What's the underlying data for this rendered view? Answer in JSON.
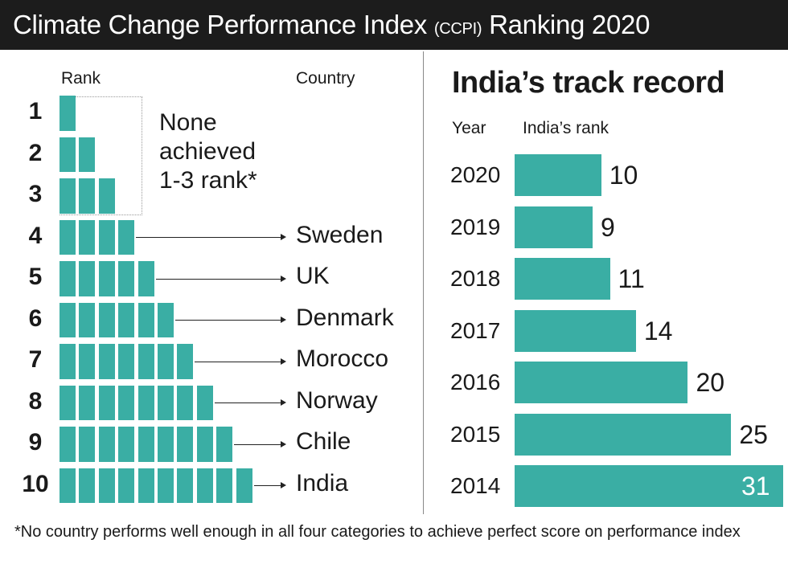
{
  "title": {
    "main": "Climate Change Performance Index",
    "abbr": "(CCPI)",
    "tail": "Ranking 2020"
  },
  "left": {
    "rank_header": "Rank",
    "country_header": "Country",
    "none_note": [
      "None",
      "achieved",
      "1-3 rank*"
    ]
  },
  "right": {
    "title": "India’s track record",
    "year_header": "Year",
    "rank_header": "India’s rank"
  },
  "footnote": "*No country performs well enough in all four categories to achieve perfect score on performance index",
  "colors": {
    "bar": "#3aaea4",
    "title_bg": "#1c1c1c"
  },
  "chart_data": [
    {
      "type": "bar",
      "title": "Climate Change Performance Index (CCPI) Ranking 2020",
      "xlabel": "Rank",
      "ylabel": "Country",
      "ranks": [
        1,
        2,
        3,
        4,
        5,
        6,
        7,
        8,
        9,
        10
      ],
      "countries": [
        "",
        "",
        "",
        "Sweden",
        "UK",
        "Denmark",
        "Morocco",
        "Norway",
        "Chile",
        "India"
      ]
    },
    {
      "type": "bar",
      "title": "India’s track record",
      "xlabel": "Year",
      "ylabel": "India’s rank",
      "categories": [
        "2020",
        "2019",
        "2018",
        "2017",
        "2016",
        "2015",
        "2014"
      ],
      "values": [
        10,
        9,
        11,
        14,
        20,
        25,
        31
      ],
      "xlim": [
        0,
        31
      ]
    }
  ]
}
